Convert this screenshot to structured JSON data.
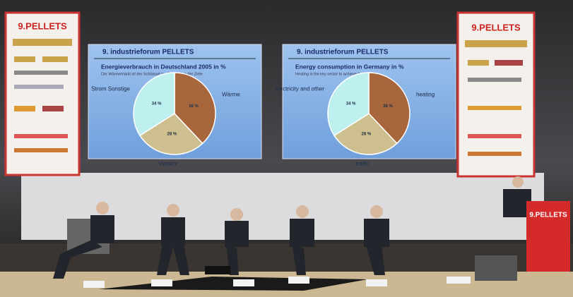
{
  "banner": "9.PELLETS",
  "podium": "9.PELLETS",
  "chart_data": [
    {
      "type": "pie",
      "header": "9. industrieforum PELLETS",
      "title": "Energieverbrauch in Deutschland 2005 in %",
      "subtitle": "Der Wärmemarkt ist der Schlüssel zur Erreichung der Ziele",
      "categories": [
        "Wärme",
        "Verkehr",
        "Strom Sonstige"
      ],
      "values": [
        38,
        28,
        34
      ],
      "value_labels": [
        "38 %",
        "28 %",
        "34 %"
      ],
      "colors": [
        "#a8663c",
        "#cdbf8e",
        "#bdf0ee"
      ]
    },
    {
      "type": "pie",
      "header": "9. industrieforum PELLETS",
      "title": "Energy consumption in Germany in %",
      "subtitle": "Heating is the key sector to achieve the targets.",
      "categories": [
        "heating",
        "traffic",
        "electricity and other"
      ],
      "values": [
        38,
        28,
        34
      ],
      "value_labels": [
        "38 %",
        "28 %",
        "34 %"
      ],
      "colors": [
        "#a8663c",
        "#cdbf8e",
        "#bdf0ee"
      ]
    }
  ]
}
